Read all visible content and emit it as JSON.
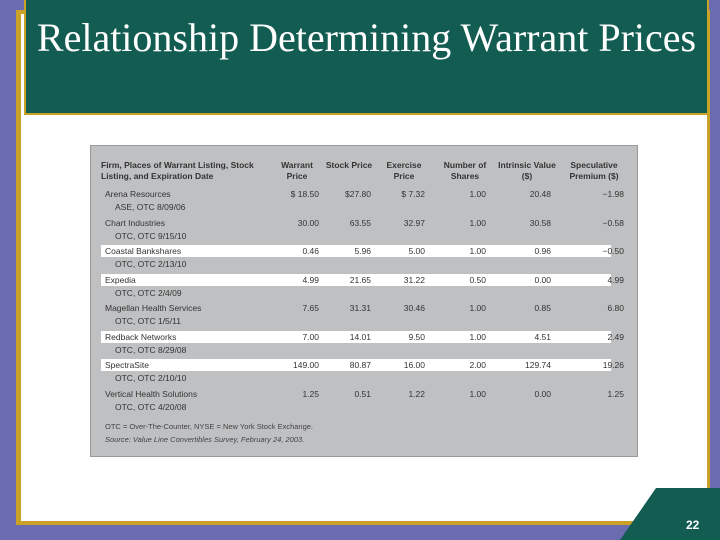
{
  "title": "Relationship Determining Warrant Prices",
  "headers": [
    "Firm, Places of Warrant Listing, Stock Listing, and Expiration Date",
    "Warrant Price",
    "Stock Price",
    "Exercise Price",
    "Number of Shares",
    "Intrinsic Value ($)",
    "Speculative Premium ($)"
  ],
  "rows": [
    {
      "firm": "Arena Resources",
      "listing": "ASE, OTC 8/09/06",
      "values": [
        "$ 18.50",
        "$27.80",
        "$ 7.32",
        "1.00",
        "20.48",
        "−1.98"
      ]
    },
    {
      "firm": "Chart Industries",
      "listing": "OTC, OTC 9/15/10",
      "values": [
        "30.00",
        "63.55",
        "32.97",
        "1.00",
        "30.58",
        "−0.58"
      ]
    },
    {
      "firm": "Coastal Bankshares",
      "listing": "OTC, OTC 2/13/10",
      "values": [
        "0.46",
        "5.96",
        "5.00",
        "1.00",
        "0.96",
        "−0.50"
      ]
    },
    {
      "firm": "Expedia",
      "listing": "OTC, OTC 2/4/09",
      "values": [
        "4.99",
        "21.65",
        "31.22",
        "0.50",
        "0.00",
        "4.99"
      ]
    },
    {
      "firm": "Magellan Health Services",
      "listing": "OTC, OTC 1/5/11",
      "values": [
        "7.65",
        "31.31",
        "30.46",
        "1.00",
        "0.85",
        "6.80"
      ]
    },
    {
      "firm": "Redback Networks",
      "listing": "OTC, OTC 8/29/08",
      "values": [
        "7.00",
        "14.01",
        "9.50",
        "1.00",
        "4.51",
        "2.49"
      ]
    },
    {
      "firm": "SpectraSite",
      "listing": "OTC, OTC 2/10/10",
      "values": [
        "149.00",
        "80.87",
        "16.00",
        "2.00",
        "129.74",
        "19.26"
      ]
    },
    {
      "firm": "Vertical Health Solutions",
      "listing": "OTC, OTC 4/20/08",
      "values": [
        "1.25",
        "0.51",
        "1.22",
        "1.00",
        "0.00",
        "1.25"
      ]
    }
  ],
  "note1": "OTC = Over-The-Counter, NYSE = New York Stock Exchange.",
  "note2": "Source: Value Line Convertibles Survey, February 24, 2003.",
  "slide_number": "22"
}
